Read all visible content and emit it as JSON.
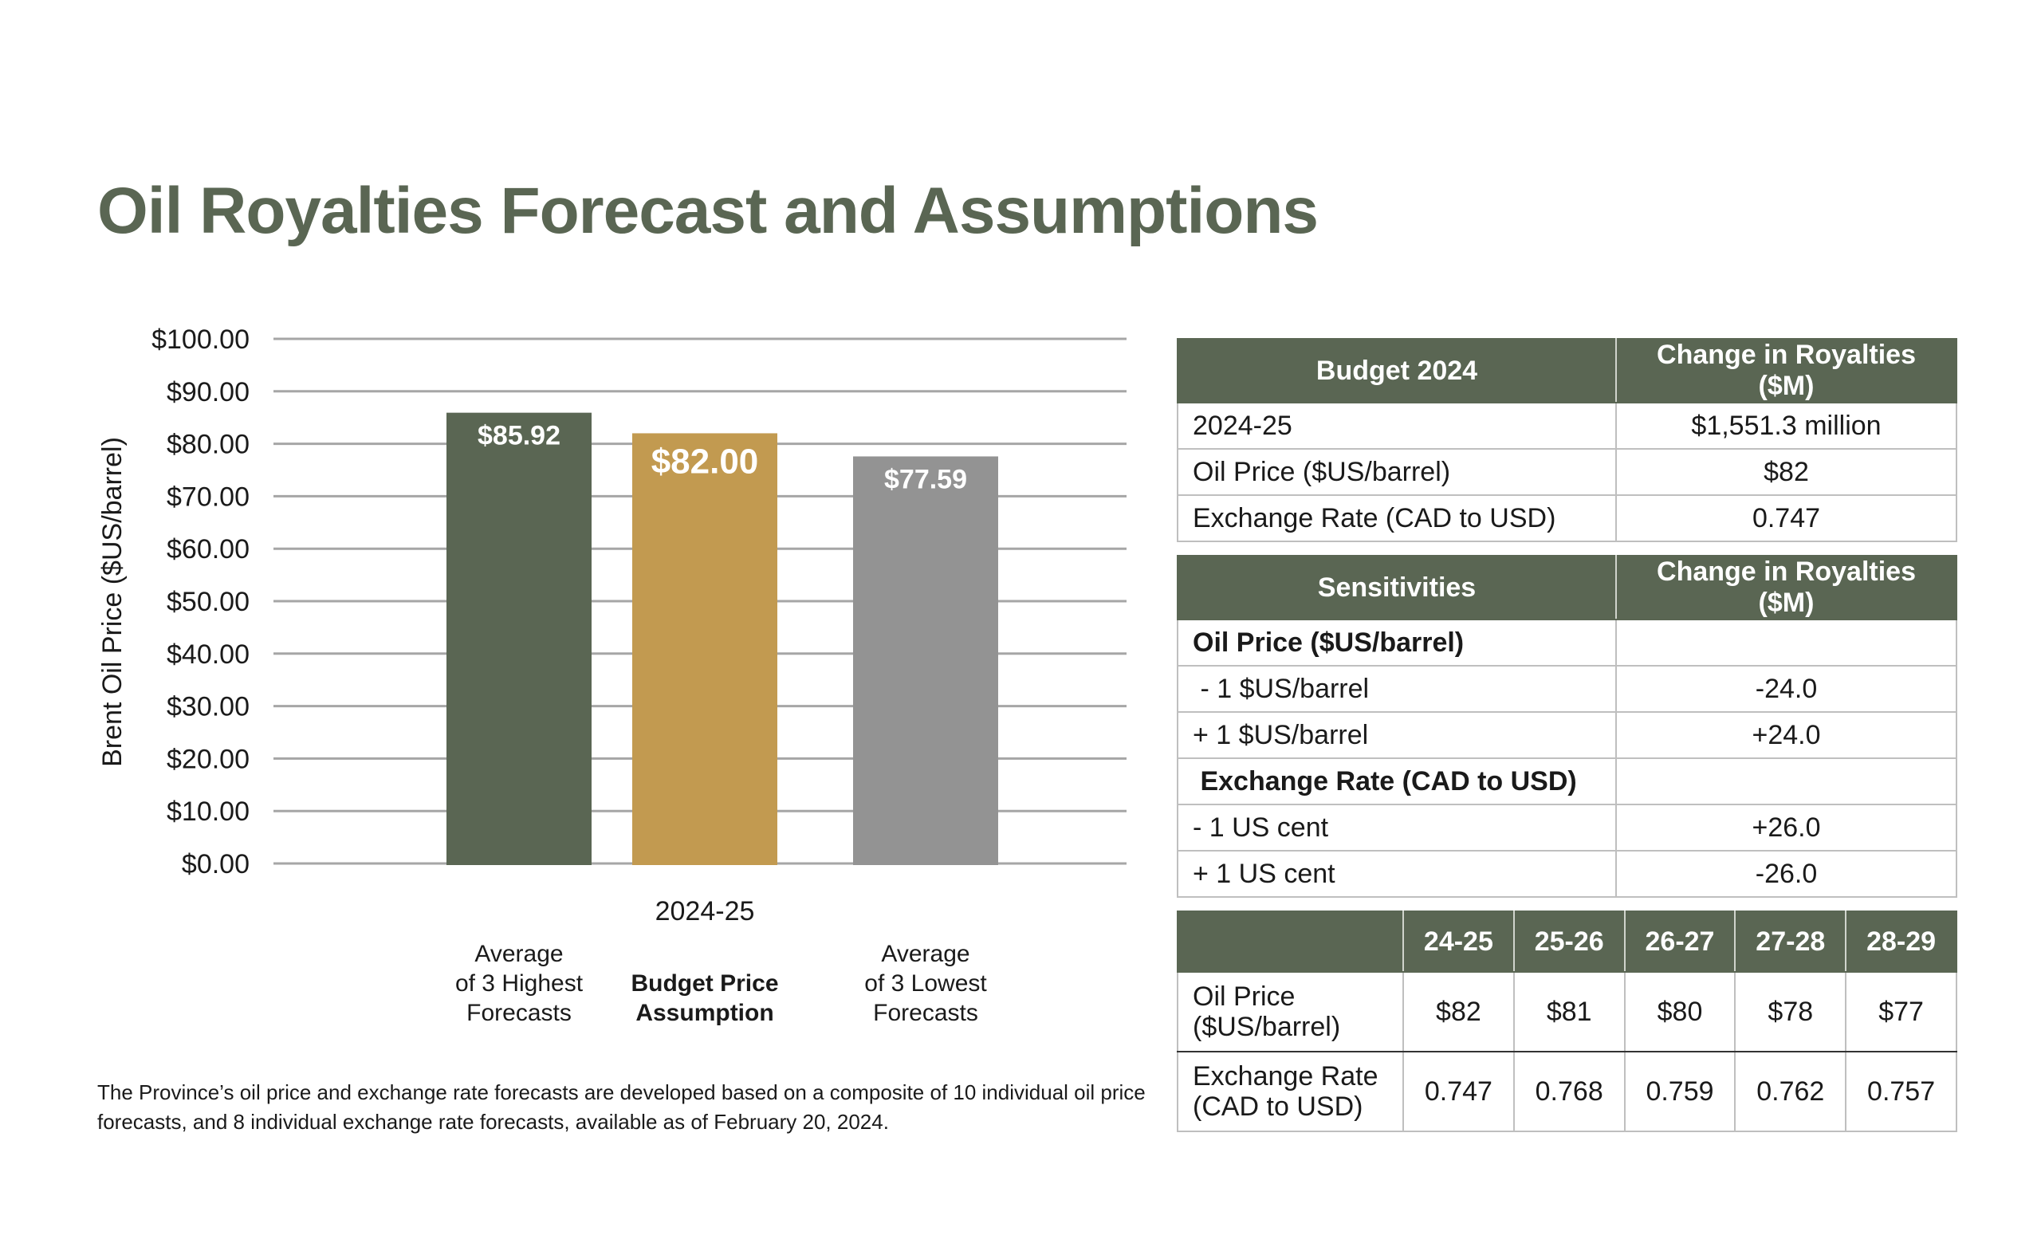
{
  "title": "Oil Royalties Forecast and Assumptions",
  "colors": {
    "accent": "#5a6653",
    "gold": "#c29a50",
    "gray": "#939393",
    "grid": "#a6a6a6"
  },
  "chart_data": {
    "type": "bar",
    "title": "",
    "xlabel": "2024-25",
    "ylabel": "Brent Oil Price ($US/barrel)",
    "ylim": [
      0,
      100
    ],
    "yticks": [
      0,
      10,
      20,
      30,
      40,
      50,
      60,
      70,
      80,
      90,
      100
    ],
    "ytick_labels": [
      "$0.00",
      "$10.00",
      "$20.00",
      "$30.00",
      "$40.00",
      "$50.00",
      "$60.00",
      "$70.00",
      "$80.00",
      "$90.00",
      "$100.00"
    ],
    "grid": true,
    "categories": [
      "Average of 3 Highest Forecasts",
      "Budget Price Assumption",
      "Average of 3 Lowest Forecasts"
    ],
    "category_lines": [
      [
        "Average",
        "of 3 Highest",
        "Forecasts"
      ],
      [
        "Budget Price",
        "Assumption"
      ],
      [
        "Average",
        "of 3 Lowest",
        "Forecasts"
      ]
    ],
    "values": [
      85.92,
      82.0,
      77.59
    ],
    "data_labels": [
      "$85.92",
      "$82.00",
      "$77.59"
    ],
    "bar_colors": [
      "#5a6653",
      "#c29a50",
      "#939393"
    ]
  },
  "footnote": "The Province’s oil price and exchange rate forecasts are developed based on a composite of 10 individual oil price forecasts, and 8 individual exchange rate forecasts, available as of February 20, 2024.",
  "budget_table": {
    "headers": [
      "Budget 2024",
      "Change in Royalties ($M)"
    ],
    "rows": [
      [
        "2024-25",
        "$1,551.3 million"
      ],
      [
        "Oil Price ($US/barrel)",
        "$82"
      ],
      [
        "Exchange Rate (CAD to USD)",
        "0.747"
      ]
    ]
  },
  "sensitivities_table": {
    "headers": [
      "Sensitivities",
      "Change in Royalties ($M)"
    ],
    "rows": [
      [
        "Oil Price ($US/barrel)",
        ""
      ],
      [
        " - 1 $US/barrel",
        "-24.0"
      ],
      [
        "+ 1 $US/barrel",
        "+24.0"
      ],
      [
        " Exchange Rate (CAD to USD)",
        ""
      ],
      [
        "- 1 US cent",
        "+26.0"
      ],
      [
        "+ 1 US cent",
        "-26.0"
      ]
    ]
  },
  "forecast_table": {
    "headers": [
      "",
      "24-25",
      "25-26",
      "26-27",
      "27-28",
      "28-29"
    ],
    "rows": [
      {
        "label_lines": [
          "Oil Price",
          "($US/barrel)"
        ],
        "values": [
          "$82",
          "$81",
          "$80",
          "$78",
          "$77"
        ]
      },
      {
        "label_lines": [
          "Exchange Rate",
          "(CAD to USD)"
        ],
        "values": [
          "0.747",
          "0.768",
          "0.759",
          "0.762",
          "0.757"
        ]
      }
    ]
  }
}
